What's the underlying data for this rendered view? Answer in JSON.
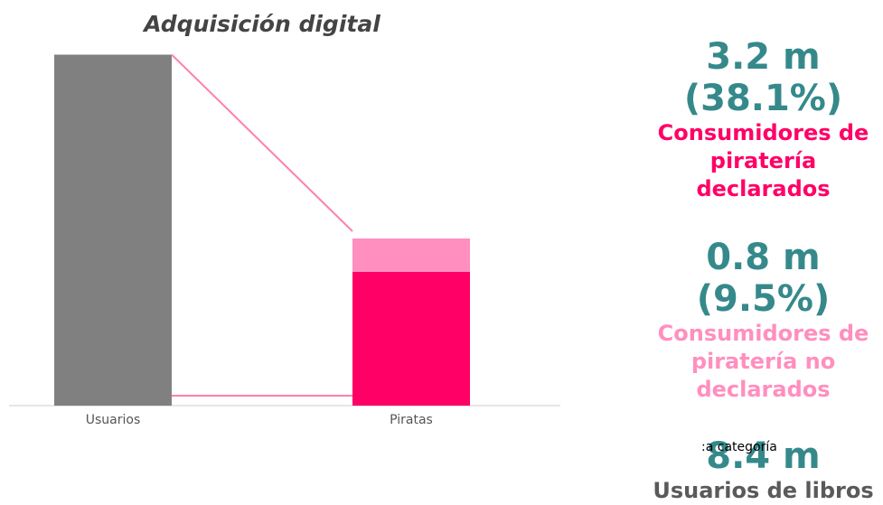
{
  "chart_data": {
    "type": "bar",
    "stacked": true,
    "title": "Adquisición digital",
    "categories": [
      "Usuarios",
      "Piratas"
    ],
    "series": [
      {
        "name": "Usuarios de libros",
        "color": "#808080",
        "values": [
          8.4,
          null
        ],
        "value_labels": [
          "8.4 m",
          null
        ]
      },
      {
        "name": "Consumidores de piratería declarados",
        "color": "#ff0066",
        "values": [
          null,
          3.2
        ],
        "value_labels": [
          null,
          "3.2 m"
        ],
        "share_labels": [
          null,
          "(38.1%)"
        ]
      },
      {
        "name": "Consumidores de piratería no declarados",
        "color": "#ff8fbf",
        "values": [
          null,
          0.8
        ],
        "value_labels": [
          null,
          "0.8 m"
        ],
        "share_labels": [
          null,
          "(9.5%)"
        ]
      }
    ],
    "ylim": [
      0,
      8.8
    ],
    "annotations": [
      ":a categoría"
    ]
  }
}
